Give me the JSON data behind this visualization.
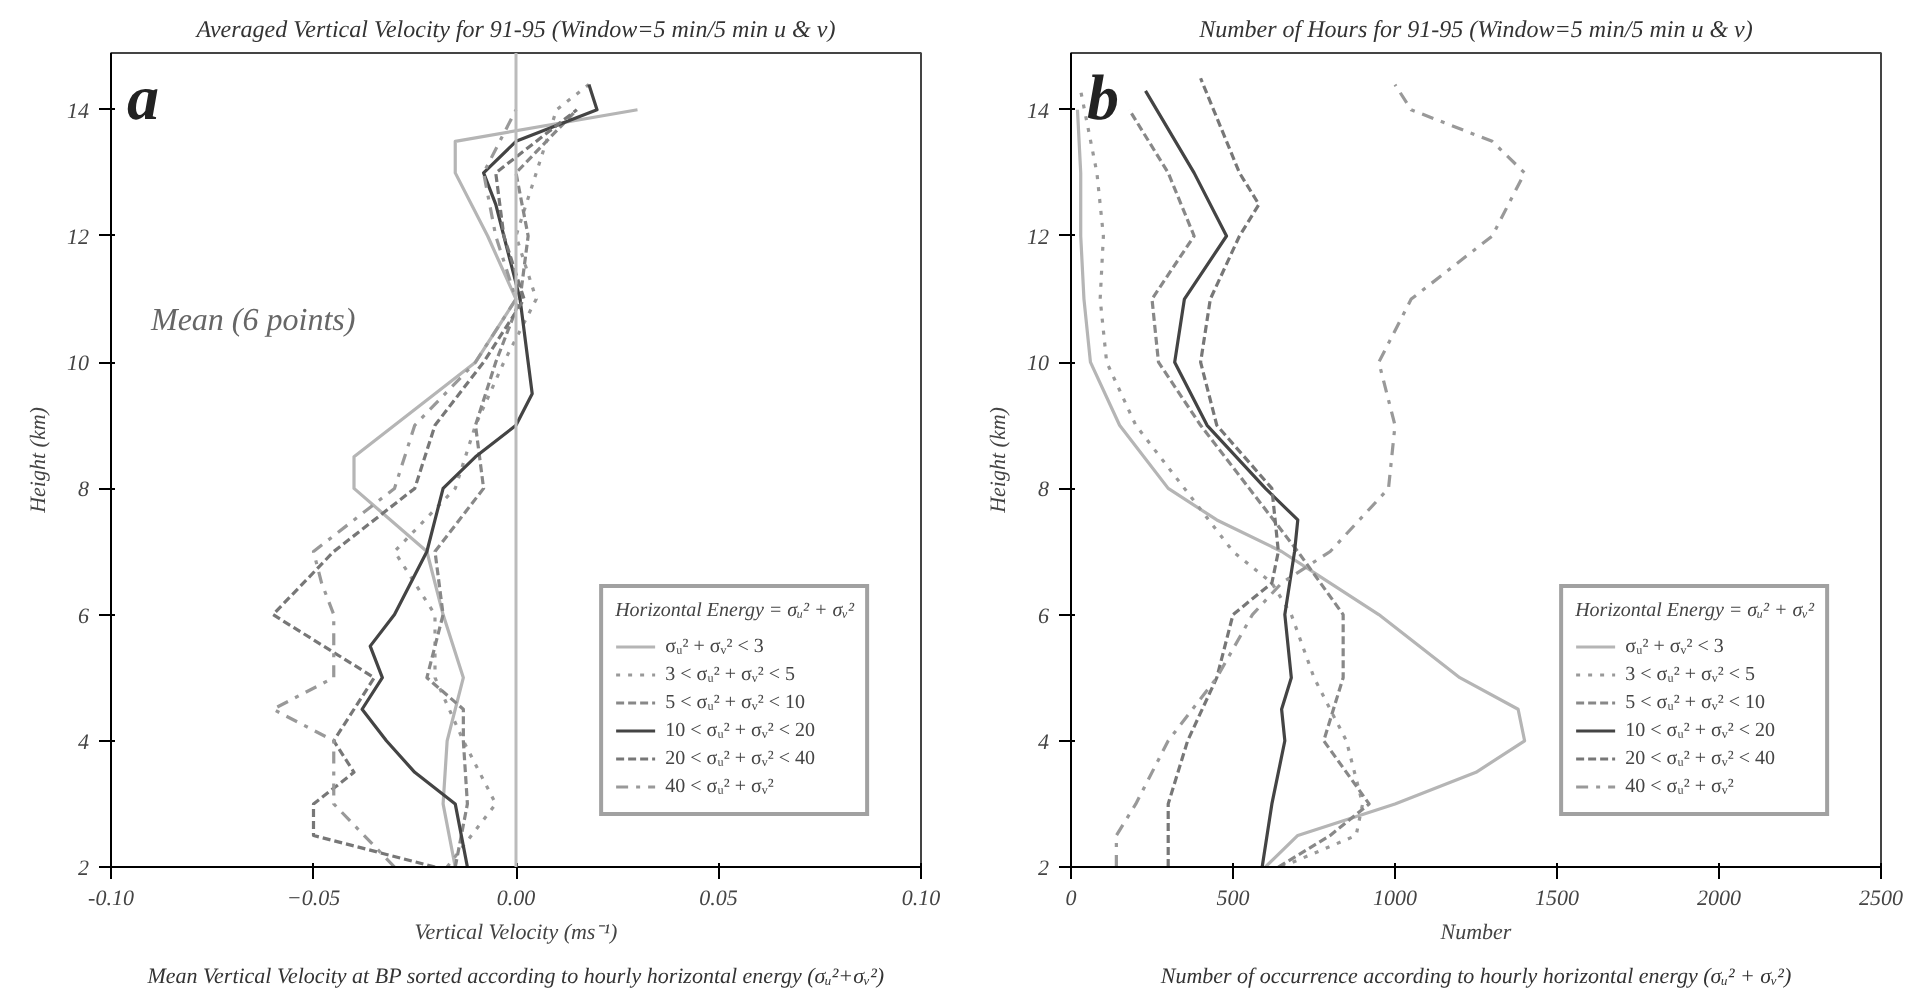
{
  "chart_data": [
    {
      "type": "line",
      "title": "Averaged Vertical Velocity for 91-95 (Window=5 min/5 min u & v)",
      "xlabel": "Vertical Velocity (ms⁻¹)",
      "ylabel": "Height (km)",
      "legend_title": "Horizontal Energy = σᵤ² + σᵥ²",
      "annotations": [
        "a",
        "Mean (6 points)",
        "Mean Vertical Velocity at BP sorted according to hourly horizontal energy (σᵤ²+σᵥ²)"
      ],
      "xlim": [
        -0.1,
        0.1
      ],
      "xticks": [
        {
          "value": -0.1,
          "label": "-0.10"
        },
        -0.05,
        {
          "value": 0,
          "label": "0.00"
        },
        0.05,
        {
          "value": 0.1,
          "label": "0.10"
        }
      ],
      "ylim": [
        2,
        14.9
      ],
      "yticks": [
        2,
        4,
        6,
        8,
        10,
        12,
        14
      ],
      "grid": false,
      "legend": "bottom right",
      "orientation": "horizontal",
      "ref_lines": [
        {
          "axis": "x",
          "value": 0,
          "color": "#bbbbbb"
        }
      ],
      "series": [
        {
          "name": "σᵤ² + σᵥ² < 3",
          "color": "#b5b5b5",
          "line_style": "solid",
          "x": [
            2,
            3,
            4,
            5,
            6,
            7,
            8,
            8.5,
            9,
            10,
            11,
            12,
            13,
            13.5,
            14
          ],
          "values": [
            -0.015,
            -0.018,
            -0.017,
            -0.013,
            -0.018,
            -0.022,
            -0.04,
            -0.04,
            -0.03,
            -0.01,
            0.0,
            -0.007,
            -0.015,
            -0.015,
            0.03
          ]
        },
        {
          "name": "3 < σᵤ² + σᵥ² < 5",
          "color": "#999999",
          "line_style": "dotted",
          "x": [
            2,
            3,
            4,
            5,
            6,
            7,
            8,
            9,
            10,
            11,
            12,
            13,
            14,
            14.4
          ],
          "values": [
            -0.017,
            -0.005,
            -0.013,
            -0.02,
            -0.02,
            -0.03,
            -0.015,
            -0.01,
            -0.003,
            0.005,
            0.0,
            0.005,
            0.01,
            0.018
          ]
        },
        {
          "name": "5 < σᵤ² + σᵥ² < 10",
          "color": "#888888",
          "line_style": "dashed",
          "x": [
            2,
            3,
            4,
            4.5,
            5,
            6,
            7,
            8,
            9,
            10,
            11,
            12,
            13,
            14
          ],
          "values": [
            -0.015,
            -0.012,
            -0.013,
            -0.013,
            -0.022,
            -0.018,
            -0.02,
            -0.008,
            -0.01,
            -0.005,
            0.001,
            0.003,
            0.0,
            0.015
          ]
        },
        {
          "name": "10 < σᵤ² + σᵥ² < 20",
          "color": "#444444",
          "line_style": "solid",
          "x": [
            2,
            3,
            3.5,
            4,
            4.5,
            5,
            5.5,
            6,
            7,
            7.5,
            8,
            8.5,
            9,
            9.5,
            10,
            11,
            12,
            12.5,
            13,
            13.5,
            14,
            14.4
          ],
          "values": [
            -0.012,
            -0.015,
            -0.025,
            -0.032,
            -0.038,
            -0.033,
            -0.036,
            -0.03,
            -0.022,
            -0.02,
            -0.018,
            -0.01,
            0.0,
            0.004,
            0.003,
            0.001,
            -0.003,
            -0.005,
            -0.008,
            0.0,
            0.02,
            0.018
          ]
        },
        {
          "name": "20 < σᵤ² + σᵥ² < 40",
          "color": "#777777",
          "line_style": "dashed",
          "x": [
            2,
            2.5,
            3,
            3.5,
            4,
            5,
            6,
            7,
            8,
            9,
            10,
            11,
            12,
            13,
            14
          ],
          "values": [
            -0.02,
            -0.05,
            -0.05,
            -0.04,
            -0.045,
            -0.035,
            -0.06,
            -0.045,
            -0.025,
            -0.02,
            -0.008,
            0.002,
            -0.003,
            -0.005,
            0.015
          ]
        },
        {
          "name": "40 < σᵤ² + σᵥ²",
          "color": "#999999",
          "line_style": "dashdot",
          "x": [
            2,
            3,
            4,
            4.5,
            5,
            6,
            6.5,
            7,
            7.5,
            8,
            9,
            10,
            11,
            12,
            13,
            14
          ],
          "values": [
            -0.03,
            -0.045,
            -0.045,
            -0.06,
            -0.045,
            -0.045,
            -0.048,
            -0.05,
            -0.04,
            -0.03,
            -0.025,
            -0.01,
            0.0,
            -0.005,
            -0.008,
            0.0
          ]
        }
      ]
    },
    {
      "type": "line",
      "title": "Number of Hours for 91-95 (Window=5 min/5 min u & v)",
      "xlabel": "Number",
      "ylabel": "Height (km)",
      "legend_title": "Horizontal Energy = σᵤ² + σᵥ²",
      "annotations": [
        "b",
        "Number of occurrence according to hourly horizontal energy (σᵤ² + σᵥ²)"
      ],
      "xlim": [
        0,
        2500
      ],
      "xticks": [
        0,
        500,
        1000,
        1500,
        2000,
        2500
      ],
      "ylim": [
        2,
        14.9
      ],
      "yticks": [
        2,
        4,
        6,
        8,
        10,
        12,
        14
      ],
      "grid": false,
      "legend": "bottom right",
      "orientation": "horizontal",
      "series": [
        {
          "name": "σᵤ² + σᵥ² < 3",
          "color": "#b5b5b5",
          "line_style": "solid",
          "x": [
            2,
            2.5,
            3,
            3.5,
            4,
            4.5,
            5,
            6,
            6.5,
            7,
            7.5,
            8,
            9,
            10,
            11,
            12,
            13,
            14
          ],
          "values": [
            600,
            700,
            1000,
            1250,
            1400,
            1380,
            1200,
            950,
            800,
            650,
            450,
            300,
            150,
            60,
            40,
            30,
            30,
            20
          ]
        },
        {
          "name": "3 < σᵤ² + σᵥ² < 5",
          "color": "#999999",
          "line_style": "dotted",
          "x": [
            2,
            2.5,
            3,
            4,
            5,
            6,
            6.5,
            7,
            8,
            9,
            10,
            11,
            12,
            13,
            14.3
          ],
          "values": [
            650,
            880,
            900,
            850,
            750,
            680,
            620,
            500,
            350,
            200,
            110,
            90,
            100,
            80,
            30
          ]
        },
        {
          "name": "5 < σᵤ² + σᵥ² < 10",
          "color": "#888888",
          "line_style": "dashed",
          "x": [
            2,
            2.5,
            3,
            4,
            5,
            6,
            7,
            8,
            9,
            10,
            11,
            12,
            13,
            14
          ],
          "values": [
            640,
            800,
            920,
            780,
            840,
            840,
            700,
            550,
            400,
            270,
            250,
            380,
            300,
            180
          ]
        },
        {
          "name": "10 < σᵤ² + σᵥ² < 20",
          "color": "#444444",
          "line_style": "solid",
          "x": [
            2,
            3,
            4,
            4.5,
            5,
            6,
            7,
            7.5,
            8,
            9,
            10,
            11,
            12,
            13,
            14.3
          ],
          "values": [
            590,
            620,
            660,
            650,
            680,
            660,
            690,
            700,
            600,
            420,
            320,
            350,
            480,
            380,
            230
          ]
        },
        {
          "name": "20 < σᵤ² + σᵥ² < 40",
          "color": "#777777",
          "line_style": "dashed",
          "x": [
            2,
            2.5,
            3,
            4,
            5,
            6,
            6.5,
            7,
            8,
            9,
            10,
            11,
            12,
            12.5,
            13,
            14.5
          ],
          "values": [
            300,
            300,
            300,
            360,
            450,
            500,
            620,
            640,
            620,
            450,
            400,
            430,
            520,
            580,
            520,
            400
          ]
        },
        {
          "name": "40 < σᵤ² + σᵥ²",
          "color": "#999999",
          "line_style": "dashdot",
          "x": [
            2,
            2.5,
            3,
            4,
            5,
            6,
            6.5,
            7,
            8,
            9,
            10,
            11,
            12,
            13,
            13.5,
            14,
            14.4
          ],
          "values": [
            140,
            140,
            200,
            300,
            450,
            560,
            650,
            800,
            980,
            1000,
            950,
            1050,
            1300,
            1400,
            1300,
            1050,
            1000
          ]
        }
      ]
    }
  ]
}
